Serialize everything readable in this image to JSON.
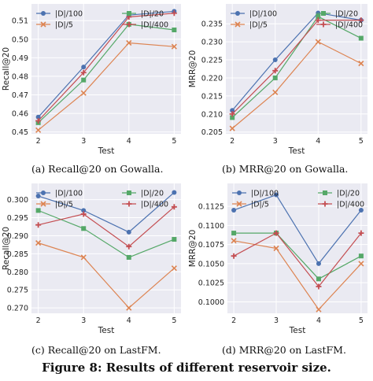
{
  "figure_caption": "Figure 8: Results of different reservoir size.",
  "chart_data": [
    {
      "type": "line",
      "caption": "(a)  Recall@20 on Gowalla.",
      "xlabel": "Test",
      "ylabel": "Recall@20",
      "x": [
        2,
        3,
        4,
        5
      ],
      "xticks": [
        "2",
        "3",
        "4",
        "5"
      ],
      "ylim": [
        0.449,
        0.519
      ],
      "yticks": [
        "0.45",
        "0.46",
        "0.47",
        "0.48",
        "0.49",
        "0.50",
        "0.51"
      ],
      "ytick_values": [
        0.45,
        0.46,
        0.47,
        0.48,
        0.49,
        0.5,
        0.51
      ],
      "grid": true,
      "legend": "top",
      "series": [
        {
          "name": "|D|/100",
          "color": "#4c72b0",
          "marker": "circle",
          "values": [
            0.458,
            0.485,
            0.513,
            0.515
          ]
        },
        {
          "name": "|D|/5",
          "color": "#dd8452",
          "marker": "x",
          "values": [
            0.451,
            0.471,
            0.498,
            0.496
          ]
        },
        {
          "name": "|D|/20",
          "color": "#55a868",
          "marker": "square",
          "values": [
            0.455,
            0.478,
            0.508,
            0.505
          ]
        },
        {
          "name": "|D|/400",
          "color": "#c44e52",
          "marker": "plus",
          "values": [
            0.456,
            0.482,
            0.512,
            0.514
          ]
        }
      ]
    },
    {
      "type": "line",
      "caption": "(b)  MRR@20 on Gowalla.",
      "xlabel": "Test",
      "ylabel": "MRR@20",
      "x": [
        2,
        3,
        4,
        5
      ],
      "xticks": [
        "2",
        "3",
        "4",
        "5"
      ],
      "ylim": [
        0.2045,
        0.2405
      ],
      "yticks": [
        "0.205",
        "0.210",
        "0.215",
        "0.220",
        "0.225",
        "0.230",
        "0.235"
      ],
      "ytick_values": [
        0.205,
        0.21,
        0.215,
        0.22,
        0.225,
        0.23,
        0.235
      ],
      "grid": true,
      "legend": "top",
      "series": [
        {
          "name": "|D|/100",
          "color": "#4c72b0",
          "marker": "circle",
          "values": [
            0.211,
            0.225,
            0.238,
            0.236
          ]
        },
        {
          "name": "|D|/5",
          "color": "#dd8452",
          "marker": "x",
          "values": [
            0.206,
            0.216,
            0.23,
            0.224
          ]
        },
        {
          "name": "|D|/20",
          "color": "#55a868",
          "marker": "square",
          "values": [
            0.209,
            0.22,
            0.237,
            0.231
          ]
        },
        {
          "name": "|D|/400",
          "color": "#c44e52",
          "marker": "plus",
          "values": [
            0.21,
            0.222,
            0.236,
            0.236
          ]
        }
      ]
    },
    {
      "type": "line",
      "caption": "(c)  Recall@20 on LastFM.",
      "xlabel": "Test",
      "ylabel": "Recall@20",
      "x": [
        2,
        3,
        4,
        5
      ],
      "xticks": [
        "2",
        "3",
        "4",
        "5"
      ],
      "ylim": [
        0.2685,
        0.3045
      ],
      "yticks": [
        "0.270",
        "0.275",
        "0.280",
        "0.285",
        "0.290",
        "0.295",
        "0.300"
      ],
      "ytick_values": [
        0.27,
        0.275,
        0.28,
        0.285,
        0.29,
        0.295,
        0.3
      ],
      "grid": true,
      "legend": "top",
      "series": [
        {
          "name": "|D|/100",
          "color": "#4c72b0",
          "marker": "circle",
          "values": [
            0.301,
            0.297,
            0.291,
            0.302
          ]
        },
        {
          "name": "|D|/5",
          "color": "#dd8452",
          "marker": "x",
          "values": [
            0.288,
            0.284,
            0.27,
            0.281
          ]
        },
        {
          "name": "|D|/20",
          "color": "#55a868",
          "marker": "square",
          "values": [
            0.297,
            0.292,
            0.284,
            0.289
          ]
        },
        {
          "name": "|D|/400",
          "color": "#c44e52",
          "marker": "plus",
          "values": [
            0.293,
            0.296,
            0.287,
            0.298
          ]
        }
      ]
    },
    {
      "type": "line",
      "caption": "(d)  MRR@20 on LastFM.",
      "xlabel": "Test",
      "ylabel": "MRR@20",
      "x": [
        2,
        3,
        4,
        5
      ],
      "xticks": [
        "2",
        "3",
        "4",
        "5"
      ],
      "ylim": [
        0.0985,
        0.1155
      ],
      "yticks": [
        "0.1000",
        "0.1025",
        "0.1050",
        "0.1075",
        "0.1100",
        "0.1125"
      ],
      "ytick_values": [
        0.1,
        0.1025,
        0.105,
        0.1075,
        0.11,
        0.1125
      ],
      "grid": true,
      "legend": "top",
      "series": [
        {
          "name": "|D|/100",
          "color": "#4c72b0",
          "marker": "circle",
          "values": [
            0.112,
            0.114,
            0.105,
            0.112
          ]
        },
        {
          "name": "|D|/5",
          "color": "#dd8452",
          "marker": "x",
          "values": [
            0.108,
            0.107,
            0.099,
            0.105
          ]
        },
        {
          "name": "|D|/20",
          "color": "#55a868",
          "marker": "square",
          "values": [
            0.109,
            0.109,
            0.103,
            0.106
          ]
        },
        {
          "name": "|D|/400",
          "color": "#c44e52",
          "marker": "plus",
          "values": [
            0.106,
            0.109,
            0.102,
            0.109
          ]
        }
      ]
    }
  ]
}
